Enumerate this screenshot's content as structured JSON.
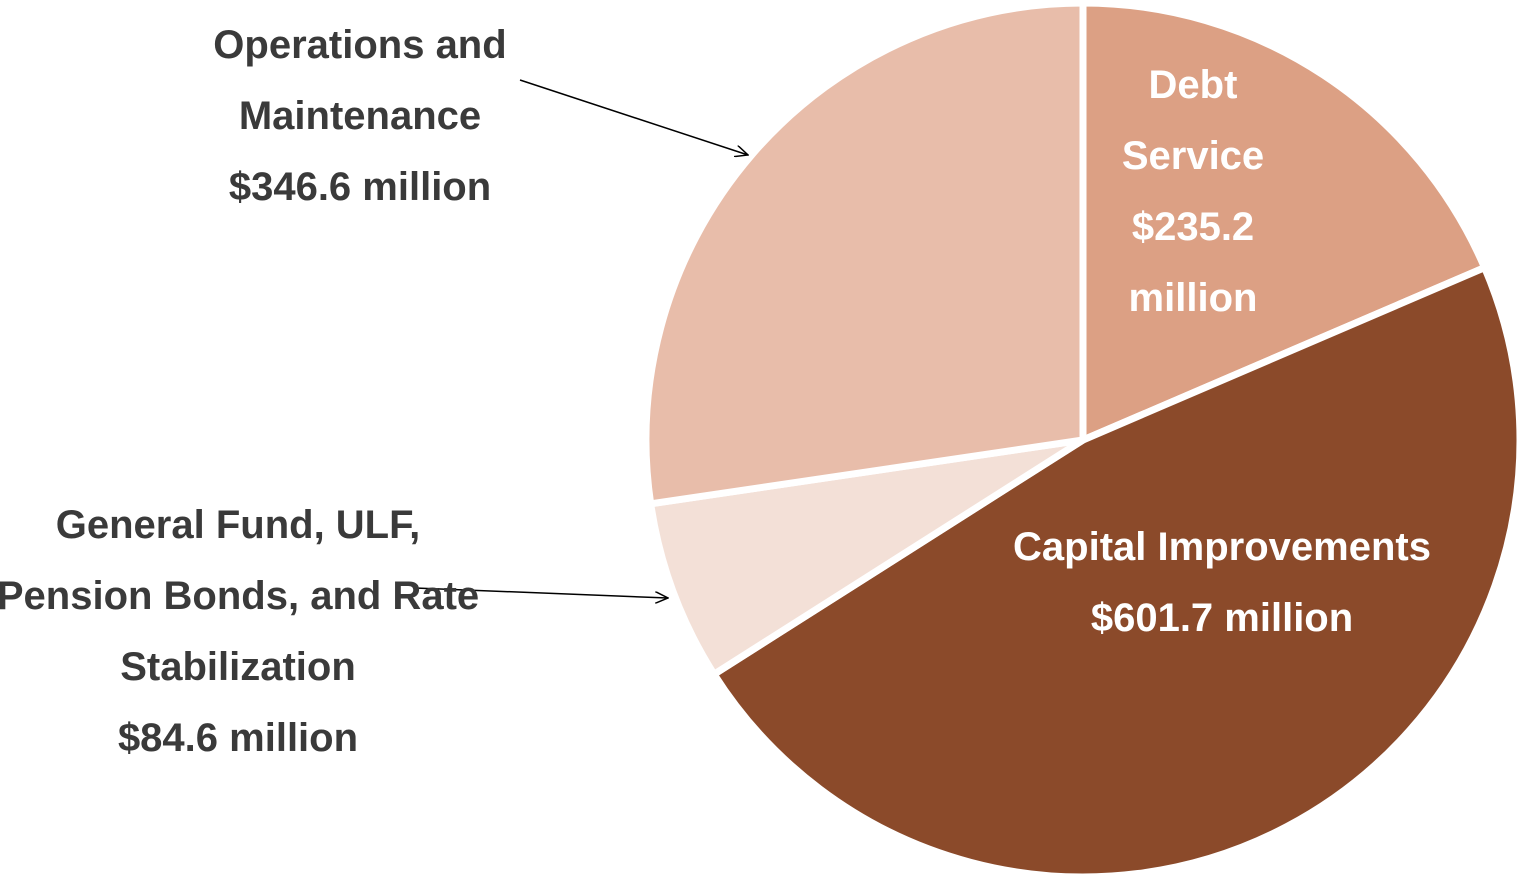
{
  "chart_data": {
    "type": "pie",
    "categories": [
      "Debt Service",
      "Capital Improvements",
      "General Fund, ULF, Pension Bonds, and Rate Stabilization",
      "Operations and Maintenance"
    ],
    "values": [
      235.2,
      601.7,
      84.6,
      346.6
    ],
    "value_labels": [
      "$235.2 million",
      "$601.7 million",
      "$84.6 million",
      "$346.6 million"
    ],
    "colors": [
      "#dca084",
      "#8b4a2a",
      "#f3e0d7",
      "#e8bdaa"
    ]
  }
}
